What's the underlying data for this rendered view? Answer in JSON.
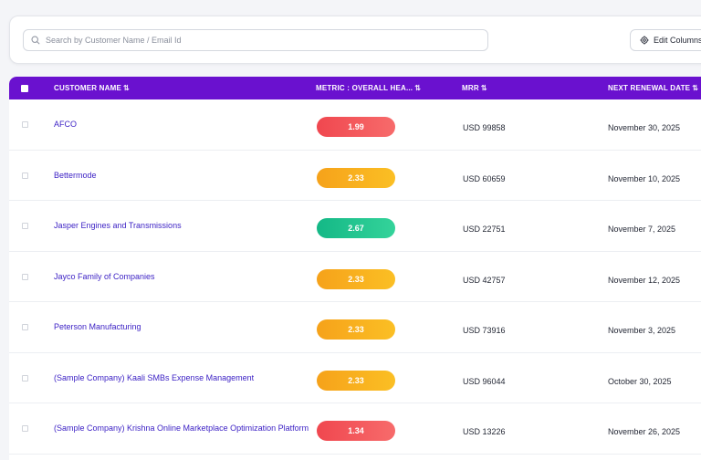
{
  "toolbar": {
    "search_placeholder": "Search by Customer Name / Email Id",
    "edit_columns_label": "Edit Columns"
  },
  "table": {
    "columns": {
      "customer": "CUSTOMER NAME",
      "metric": "METRIC : OVERALL HEA...",
      "mrr": "MRR",
      "renewal": "NEXT RENEWAL DATE"
    },
    "sort_glyph": "⇅",
    "rows": [
      {
        "customer": "AFCO",
        "health": "1.99",
        "health_status": "red",
        "mrr": "USD 99858",
        "renewal": "November 30, 2025"
      },
      {
        "customer": "Bettermode",
        "health": "2.33",
        "health_status": "orange",
        "mrr": "USD 60659",
        "renewal": "November 10, 2025"
      },
      {
        "customer": "Jasper Engines and Transmissions",
        "health": "2.67",
        "health_status": "green",
        "mrr": "USD 22751",
        "renewal": "November 7, 2025"
      },
      {
        "customer": "Jayco Family of Companies",
        "health": "2.33",
        "health_status": "orange",
        "mrr": "USD 42757",
        "renewal": "November 12, 2025"
      },
      {
        "customer": "Peterson Manufacturing",
        "health": "2.33",
        "health_status": "orange",
        "mrr": "USD 73916",
        "renewal": "November 3, 2025"
      },
      {
        "customer": "(Sample Company) Kaali SMBs Expense Management",
        "health": "2.33",
        "health_status": "orange",
        "mrr": "USD 96044",
        "renewal": "October 30, 2025"
      },
      {
        "customer": "(Sample Company) Krishna Online Marketplace Optimization Platform",
        "health": "1.34",
        "health_status": "red",
        "mrr": "USD 13226",
        "renewal": "November 26, 2025"
      }
    ]
  },
  "colors": {
    "header_bg": "#6a11cf",
    "link": "#3a1fc4",
    "red": "#f0474f",
    "orange": "#f6a21a",
    "green": "#14b886"
  }
}
